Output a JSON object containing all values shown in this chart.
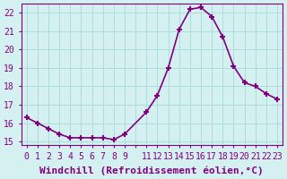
{
  "x": [
    0,
    1,
    2,
    3,
    4,
    5,
    6,
    7,
    8,
    9,
    11,
    12,
    13,
    14,
    15,
    16,
    17,
    18,
    19,
    20,
    21,
    22,
    23
  ],
  "y": [
    16.3,
    16.0,
    15.7,
    15.4,
    15.2,
    15.2,
    15.2,
    15.2,
    15.1,
    15.4,
    16.6,
    17.5,
    19.0,
    21.1,
    22.2,
    22.3,
    21.8,
    20.7,
    19.1,
    18.2,
    18.0,
    17.6,
    17.3
  ],
  "line_color": "#800080",
  "marker": "+",
  "marker_size": 5,
  "marker_linewidth": 1.5,
  "line_width": 1.2,
  "bg_color": "#d5f0f0",
  "grid_color": "#aadddd",
  "xlabel": "Windchill (Refroidissement éolien,°C)",
  "xlabel_fontsize": 8,
  "xticks": [
    0,
    1,
    2,
    3,
    4,
    5,
    6,
    7,
    8,
    9,
    10,
    11,
    12,
    13,
    14,
    15,
    16,
    17,
    18,
    19,
    20,
    21,
    22,
    23
  ],
  "xtick_labels": [
    "0",
    "1",
    "2",
    "3",
    "4",
    "5",
    "6",
    "7",
    "8",
    "9",
    "",
    "11",
    "12",
    "13",
    "14",
    "15",
    "16",
    "17",
    "18",
    "19",
    "20",
    "21",
    "22",
    "23"
  ],
  "yticks": [
    15,
    16,
    17,
    18,
    19,
    20,
    21,
    22
  ],
  "ylim": [
    14.8,
    22.5
  ],
  "xlim": [
    -0.5,
    23.5
  ],
  "tick_fontsize": 7,
  "tick_color": "#800080",
  "spine_color": "#800080"
}
